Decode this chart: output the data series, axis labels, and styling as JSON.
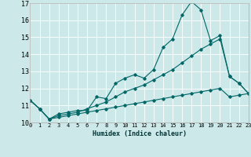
{
  "xlabel": "Humidex (Indice chaleur)",
  "ylabel": "",
  "bg_color": "#cde8e8",
  "grid_color": "#ffffff",
  "line_color": "#006666",
  "xmin": 0,
  "xmax": 23,
  "ymin": 10,
  "ymax": 17,
  "xticks": [
    0,
    1,
    2,
    3,
    4,
    5,
    6,
    7,
    8,
    9,
    10,
    11,
    12,
    13,
    14,
    15,
    16,
    17,
    18,
    19,
    20,
    21,
    22,
    23
  ],
  "yticks": [
    10,
    11,
    12,
    13,
    14,
    15,
    16,
    17
  ],
  "line1_x": [
    0,
    1,
    2,
    3,
    4,
    5,
    6,
    7,
    8,
    9,
    10,
    11,
    12,
    13,
    14,
    15,
    16,
    17,
    18,
    19,
    20,
    21,
    22,
    23
  ],
  "line1_y": [
    11.3,
    10.8,
    10.2,
    10.5,
    10.6,
    10.7,
    10.7,
    11.5,
    11.4,
    12.3,
    12.6,
    12.8,
    12.6,
    13.1,
    14.4,
    14.9,
    16.3,
    17.1,
    16.6,
    14.8,
    15.1,
    12.7,
    12.3,
    11.7
  ],
  "line2_x": [
    0,
    1,
    2,
    3,
    4,
    5,
    6,
    7,
    8,
    9,
    10,
    11,
    12,
    13,
    14,
    15,
    16,
    17,
    18,
    19,
    20,
    21,
    22,
    23
  ],
  "line2_y": [
    11.3,
    10.8,
    10.2,
    10.4,
    10.5,
    10.6,
    10.8,
    11.0,
    11.2,
    11.5,
    11.8,
    12.0,
    12.2,
    12.5,
    12.8,
    13.1,
    13.5,
    13.9,
    14.3,
    14.6,
    14.9,
    12.7,
    12.3,
    11.7
  ],
  "line3_x": [
    0,
    1,
    2,
    3,
    4,
    5,
    6,
    7,
    8,
    9,
    10,
    11,
    12,
    13,
    14,
    15,
    16,
    17,
    18,
    19,
    20,
    21,
    22,
    23
  ],
  "line3_y": [
    11.3,
    10.8,
    10.2,
    10.3,
    10.4,
    10.5,
    10.6,
    10.7,
    10.8,
    10.9,
    11.0,
    11.1,
    11.2,
    11.3,
    11.4,
    11.5,
    11.6,
    11.7,
    11.8,
    11.9,
    12.0,
    11.5,
    11.6,
    11.7
  ]
}
